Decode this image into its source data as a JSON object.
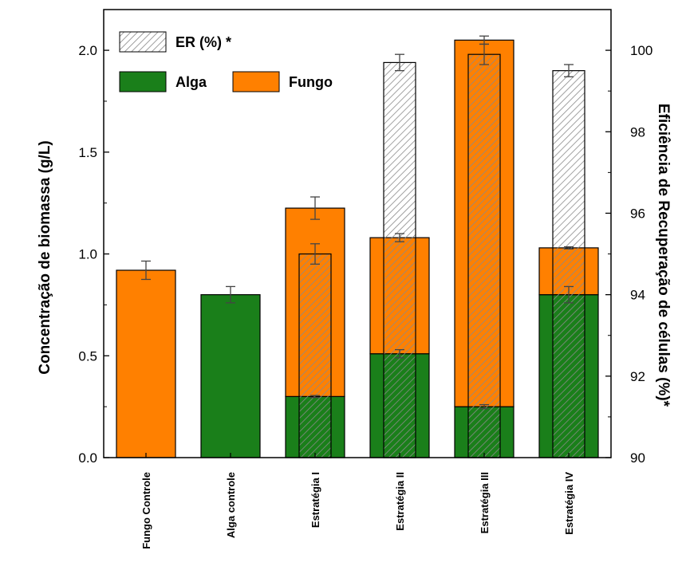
{
  "chart_data": {
    "type": "bar",
    "categories": [
      "Fungo Controle",
      "Alga controle",
      "Estratégia I",
      "Estratégia II",
      "Estratégia III",
      "Estratégia IV"
    ],
    "ylabel": "Concentração de biomassa (g/L)",
    "y2label": "Eficiência de Recuperação de células (%)*",
    "ylim": [
      0,
      2.2
    ],
    "y2lim": [
      90,
      101
    ],
    "yticks": [
      "0.0",
      "0.5",
      "1.0",
      "1.5",
      "2.0"
    ],
    "y2ticks": [
      "90",
      "92",
      "94",
      "96",
      "98",
      "100"
    ],
    "series": [
      {
        "name": "Alga",
        "color": "#1a7f1a",
        "values": [
          0,
          0.8,
          0.3,
          0.51,
          0.25,
          0.8
        ],
        "errors": [
          0,
          0.04,
          0.005,
          0.02,
          0.01,
          0.04
        ]
      },
      {
        "name": "Fungo",
        "color": "#ff8000",
        "values": [
          0.92,
          0,
          0.925,
          0.57,
          1.8,
          0.23
        ],
        "totals": [
          0.92,
          0.8,
          1.225,
          1.08,
          2.05,
          1.03
        ],
        "errors": [
          0.045,
          0,
          0.055,
          0.02,
          0.02,
          0.005
        ]
      },
      {
        "name": "ER (%) *",
        "pattern": "hatched",
        "axis": "right",
        "values": [
          null,
          null,
          95.0,
          99.7,
          99.9,
          99.5
        ],
        "errors": [
          null,
          null,
          0.25,
          0.2,
          0.25,
          0.15
        ]
      }
    ],
    "legend": [
      "ER (%) *",
      "Alga",
      "Fungo"
    ],
    "legend_position": "top-left",
    "grid": false
  }
}
